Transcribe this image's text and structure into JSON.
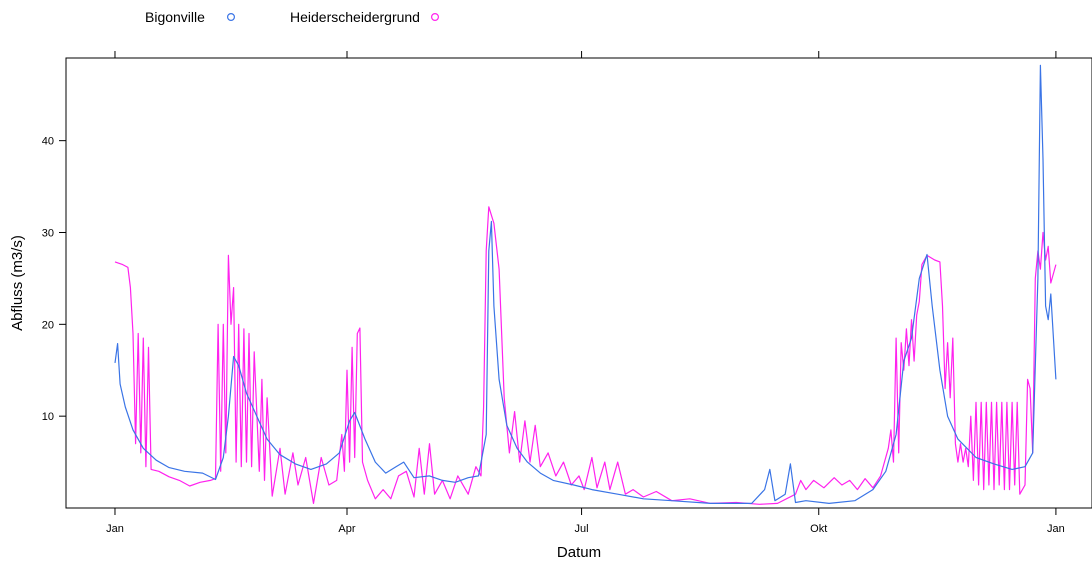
{
  "chart_data": {
    "type": "line",
    "title": "",
    "xlabel": "Datum",
    "ylabel": "Abfluss (m3/s)",
    "xlim": [
      "2020-12-13",
      "2022-01-15"
    ],
    "ylim": [
      0,
      49
    ],
    "x_ticks": [
      {
        "date": "2021-01-01",
        "label": "Jan"
      },
      {
        "date": "2021-04-01",
        "label": "Apr"
      },
      {
        "date": "2021-07-01",
        "label": "Jul"
      },
      {
        "date": "2021-10-01",
        "label": "Okt"
      },
      {
        "date": "2022-01-01",
        "label": "Jan"
      }
    ],
    "y_ticks": [
      10,
      20,
      30,
      40
    ],
    "legend": {
      "placement": "top",
      "entries": [
        "Bigonville",
        "Heiderscheidergrund"
      ]
    },
    "grid": false,
    "series": [
      {
        "name": "Bigonville",
        "color": "#3a74e6",
        "points": [
          [
            "2021-01-01",
            15.8
          ],
          [
            "2021-01-02",
            17.9
          ],
          [
            "2021-01-03",
            13.5
          ],
          [
            "2021-01-05",
            11.0
          ],
          [
            "2021-01-08",
            8.5
          ],
          [
            "2021-01-12",
            6.5
          ],
          [
            "2021-01-17",
            5.2
          ],
          [
            "2021-01-22",
            4.4
          ],
          [
            "2021-01-28",
            4.0
          ],
          [
            "2021-02-04",
            3.8
          ],
          [
            "2021-02-09",
            3.1
          ],
          [
            "2021-02-12",
            5.5
          ],
          [
            "2021-02-14",
            10.0
          ],
          [
            "2021-02-16",
            16.5
          ],
          [
            "2021-02-18",
            15.5
          ],
          [
            "2021-02-21",
            12.5
          ],
          [
            "2021-02-25",
            10.0
          ],
          [
            "2021-03-01",
            7.5
          ],
          [
            "2021-03-06",
            5.8
          ],
          [
            "2021-03-12",
            4.8
          ],
          [
            "2021-03-18",
            4.2
          ],
          [
            "2021-03-24",
            4.8
          ],
          [
            "2021-03-29",
            6.0
          ],
          [
            "2021-04-02",
            9.5
          ],
          [
            "2021-04-04",
            10.4
          ],
          [
            "2021-04-08",
            7.5
          ],
          [
            "2021-04-12",
            5.0
          ],
          [
            "2021-04-16",
            3.8
          ],
          [
            "2021-04-20",
            4.5
          ],
          [
            "2021-04-23",
            5.0
          ],
          [
            "2021-04-27",
            3.3
          ],
          [
            "2021-05-03",
            3.5
          ],
          [
            "2021-05-08",
            3.0
          ],
          [
            "2021-05-13",
            2.8
          ],
          [
            "2021-05-18",
            3.3
          ],
          [
            "2021-05-22",
            3.5
          ],
          [
            "2021-05-25",
            8.0
          ],
          [
            "2021-05-26",
            28.0
          ],
          [
            "2021-05-27",
            31.2
          ],
          [
            "2021-05-28",
            22.0
          ],
          [
            "2021-05-30",
            14.0
          ],
          [
            "2021-06-02",
            9.0
          ],
          [
            "2021-06-06",
            6.5
          ],
          [
            "2021-06-10",
            5.0
          ],
          [
            "2021-06-15",
            3.8
          ],
          [
            "2021-06-20",
            3.0
          ],
          [
            "2021-06-28",
            2.5
          ],
          [
            "2021-07-05",
            2.0
          ],
          [
            "2021-07-15",
            1.5
          ],
          [
            "2021-07-25",
            1.0
          ],
          [
            "2021-08-05",
            0.8
          ],
          [
            "2021-08-20",
            0.5
          ],
          [
            "2021-09-05",
            0.5
          ],
          [
            "2021-09-10",
            2.0
          ],
          [
            "2021-09-12",
            4.2
          ],
          [
            "2021-09-14",
            0.8
          ],
          [
            "2021-09-18",
            1.5
          ],
          [
            "2021-09-20",
            4.8
          ],
          [
            "2021-09-22",
            0.6
          ],
          [
            "2021-09-26",
            0.8
          ],
          [
            "2021-10-05",
            0.5
          ],
          [
            "2021-10-15",
            0.8
          ],
          [
            "2021-10-22",
            2.0
          ],
          [
            "2021-10-27",
            4.0
          ],
          [
            "2021-10-31",
            8.0
          ],
          [
            "2021-11-03",
            16.0
          ],
          [
            "2021-11-06",
            18.5
          ],
          [
            "2021-11-09",
            25.0
          ],
          [
            "2021-11-12",
            27.6
          ],
          [
            "2021-11-14",
            22.0
          ],
          [
            "2021-11-17",
            15.0
          ],
          [
            "2021-11-20",
            10.0
          ],
          [
            "2021-11-24",
            7.5
          ],
          [
            "2021-12-01",
            5.5
          ],
          [
            "2021-12-08",
            4.8
          ],
          [
            "2021-12-15",
            4.2
          ],
          [
            "2021-12-20",
            4.5
          ],
          [
            "2021-12-23",
            6.0
          ],
          [
            "2021-12-25",
            25.0
          ],
          [
            "2021-12-26",
            48.2
          ],
          [
            "2021-12-27",
            38.0
          ],
          [
            "2021-12-28",
            22.0
          ],
          [
            "2021-12-29",
            20.5
          ],
          [
            "2021-12-30",
            23.3
          ],
          [
            "2022-01-01",
            14.0
          ]
        ]
      },
      {
        "name": "Heiderscheidergrund",
        "color": "#ff22ee",
        "points": [
          [
            "2021-01-01",
            26.8
          ],
          [
            "2021-01-04",
            26.5
          ],
          [
            "2021-01-06",
            26.2
          ],
          [
            "2021-01-07",
            24.0
          ],
          [
            "2021-01-08",
            19.0
          ],
          [
            "2021-01-09",
            7.0
          ],
          [
            "2021-01-10",
            19.0
          ],
          [
            "2021-01-11",
            6.0
          ],
          [
            "2021-01-12",
            18.5
          ],
          [
            "2021-01-13",
            4.5
          ],
          [
            "2021-01-14",
            17.5
          ],
          [
            "2021-01-15",
            4.2
          ],
          [
            "2021-01-18",
            4.0
          ],
          [
            "2021-01-22",
            3.4
          ],
          [
            "2021-01-26",
            3.0
          ],
          [
            "2021-01-30",
            2.4
          ],
          [
            "2021-02-03",
            2.8
          ],
          [
            "2021-02-07",
            3.0
          ],
          [
            "2021-02-09",
            3.2
          ],
          [
            "2021-02-10",
            20.0
          ],
          [
            "2021-02-11",
            4.0
          ],
          [
            "2021-02-12",
            20.0
          ],
          [
            "2021-02-13",
            6.0
          ],
          [
            "2021-02-14",
            27.5
          ],
          [
            "2021-02-15",
            20.0
          ],
          [
            "2021-02-16",
            24.0
          ],
          [
            "2021-02-17",
            5.0
          ],
          [
            "2021-02-18",
            20.0
          ],
          [
            "2021-02-19",
            4.5
          ],
          [
            "2021-02-20",
            19.5
          ],
          [
            "2021-02-21",
            5.0
          ],
          [
            "2021-02-22",
            19.0
          ],
          [
            "2021-02-23",
            4.5
          ],
          [
            "2021-02-24",
            17.0
          ],
          [
            "2021-02-26",
            4.0
          ],
          [
            "2021-02-27",
            14.0
          ],
          [
            "2021-02-28",
            3.0
          ],
          [
            "2021-03-01",
            12.0
          ],
          [
            "2021-03-03",
            1.3
          ],
          [
            "2021-03-06",
            6.5
          ],
          [
            "2021-03-08",
            1.5
          ],
          [
            "2021-03-11",
            6.0
          ],
          [
            "2021-03-13",
            2.5
          ],
          [
            "2021-03-16",
            5.5
          ],
          [
            "2021-03-19",
            0.5
          ],
          [
            "2021-03-22",
            5.5
          ],
          [
            "2021-03-25",
            2.5
          ],
          [
            "2021-03-28",
            3.0
          ],
          [
            "2021-03-30",
            8.0
          ],
          [
            "2021-03-31",
            4.0
          ],
          [
            "2021-04-01",
            15.0
          ],
          [
            "2021-04-02",
            5.0
          ],
          [
            "2021-04-03",
            17.5
          ],
          [
            "2021-04-04",
            5.5
          ],
          [
            "2021-04-05",
            19.0
          ],
          [
            "2021-04-06",
            19.6
          ],
          [
            "2021-04-07",
            5.0
          ],
          [
            "2021-04-09",
            3.0
          ],
          [
            "2021-04-12",
            1.0
          ],
          [
            "2021-04-15",
            2.0
          ],
          [
            "2021-04-18",
            1.0
          ],
          [
            "2021-04-21",
            3.5
          ],
          [
            "2021-04-24",
            4.0
          ],
          [
            "2021-04-27",
            1.2
          ],
          [
            "2021-04-29",
            6.5
          ],
          [
            "2021-05-01",
            1.5
          ],
          [
            "2021-05-03",
            7.0
          ],
          [
            "2021-05-05",
            1.5
          ],
          [
            "2021-05-08",
            3.0
          ],
          [
            "2021-05-11",
            1.0
          ],
          [
            "2021-05-14",
            3.5
          ],
          [
            "2021-05-18",
            1.5
          ],
          [
            "2021-05-21",
            4.5
          ],
          [
            "2021-05-23",
            3.5
          ],
          [
            "2021-05-24",
            11.0
          ],
          [
            "2021-05-25",
            28.0
          ],
          [
            "2021-05-26",
            32.8
          ],
          [
            "2021-05-28",
            31.0
          ],
          [
            "2021-05-30",
            26.0
          ],
          [
            "2021-06-01",
            12.0
          ],
          [
            "2021-06-03",
            6.0
          ],
          [
            "2021-06-05",
            10.5
          ],
          [
            "2021-06-07",
            5.0
          ],
          [
            "2021-06-09",
            9.5
          ],
          [
            "2021-06-11",
            5.0
          ],
          [
            "2021-06-13",
            9.0
          ],
          [
            "2021-06-15",
            4.5
          ],
          [
            "2021-06-18",
            6.0
          ],
          [
            "2021-06-21",
            3.5
          ],
          [
            "2021-06-24",
            5.0
          ],
          [
            "2021-06-27",
            2.5
          ],
          [
            "2021-06-30",
            3.5
          ],
          [
            "2021-07-02",
            2.0
          ],
          [
            "2021-07-05",
            5.5
          ],
          [
            "2021-07-07",
            2.2
          ],
          [
            "2021-07-10",
            5.0
          ],
          [
            "2021-07-12",
            2.0
          ],
          [
            "2021-07-15",
            5.0
          ],
          [
            "2021-07-18",
            1.5
          ],
          [
            "2021-07-21",
            2.0
          ],
          [
            "2021-07-25",
            1.2
          ],
          [
            "2021-07-30",
            1.8
          ],
          [
            "2021-08-05",
            0.8
          ],
          [
            "2021-08-12",
            1.0
          ],
          [
            "2021-08-20",
            0.5
          ],
          [
            "2021-08-30",
            0.6
          ],
          [
            "2021-09-08",
            0.4
          ],
          [
            "2021-09-15",
            0.5
          ],
          [
            "2021-09-22",
            1.5
          ],
          [
            "2021-09-24",
            3.0
          ],
          [
            "2021-09-26",
            2.0
          ],
          [
            "2021-09-29",
            3.0
          ],
          [
            "2021-10-03",
            2.2
          ],
          [
            "2021-10-07",
            3.3
          ],
          [
            "2021-10-10",
            2.5
          ],
          [
            "2021-10-13",
            3.0
          ],
          [
            "2021-10-16",
            2.0
          ],
          [
            "2021-10-19",
            3.2
          ],
          [
            "2021-10-22",
            2.2
          ],
          [
            "2021-10-25",
            3.5
          ],
          [
            "2021-10-28",
            6.5
          ],
          [
            "2021-10-29",
            8.5
          ],
          [
            "2021-10-30",
            5.0
          ],
          [
            "2021-10-31",
            18.5
          ],
          [
            "2021-11-01",
            6.0
          ],
          [
            "2021-11-02",
            18.0
          ],
          [
            "2021-11-03",
            15.0
          ],
          [
            "2021-11-04",
            19.5
          ],
          [
            "2021-11-05",
            15.5
          ],
          [
            "2021-11-06",
            20.5
          ],
          [
            "2021-11-07",
            16.0
          ],
          [
            "2021-11-08",
            21.0
          ],
          [
            "2021-11-09",
            22.5
          ],
          [
            "2021-11-10",
            26.5
          ],
          [
            "2021-11-12",
            27.5
          ],
          [
            "2021-11-15",
            27.0
          ],
          [
            "2021-11-17",
            26.8
          ],
          [
            "2021-11-18",
            22.0
          ],
          [
            "2021-11-19",
            13.0
          ],
          [
            "2021-11-20",
            18.0
          ],
          [
            "2021-11-21",
            12.0
          ],
          [
            "2021-11-22",
            18.5
          ],
          [
            "2021-11-23",
            7.0
          ],
          [
            "2021-11-24",
            5.0
          ],
          [
            "2021-11-25",
            7.0
          ],
          [
            "2021-11-26",
            5.0
          ],
          [
            "2021-11-27",
            6.5
          ],
          [
            "2021-11-28",
            4.5
          ],
          [
            "2021-11-29",
            10.0
          ],
          [
            "2021-11-30",
            3.0
          ],
          [
            "2021-12-01",
            11.5
          ],
          [
            "2021-12-02",
            2.5
          ],
          [
            "2021-12-03",
            11.5
          ],
          [
            "2021-12-04",
            2.0
          ],
          [
            "2021-12-05",
            11.5
          ],
          [
            "2021-12-06",
            2.5
          ],
          [
            "2021-12-07",
            11.5
          ],
          [
            "2021-12-08",
            2.0
          ],
          [
            "2021-12-09",
            11.5
          ],
          [
            "2021-12-10",
            2.5
          ],
          [
            "2021-12-11",
            11.5
          ],
          [
            "2021-12-12",
            2.0
          ],
          [
            "2021-12-13",
            11.5
          ],
          [
            "2021-12-14",
            2.0
          ],
          [
            "2021-12-15",
            11.5
          ],
          [
            "2021-12-16",
            2.5
          ],
          [
            "2021-12-17",
            11.5
          ],
          [
            "2021-12-18",
            1.5
          ],
          [
            "2021-12-20",
            2.5
          ],
          [
            "2021-12-21",
            14.0
          ],
          [
            "2021-12-22",
            13.0
          ],
          [
            "2021-12-23",
            6.0
          ],
          [
            "2021-12-24",
            25.0
          ],
          [
            "2021-12-25",
            28.0
          ],
          [
            "2021-12-26",
            26.0
          ],
          [
            "2021-12-27",
            30.0
          ],
          [
            "2021-12-28",
            27.0
          ],
          [
            "2021-12-29",
            28.5
          ],
          [
            "2021-12-30",
            24.5
          ],
          [
            "2022-01-01",
            26.5
          ]
        ]
      }
    ]
  }
}
